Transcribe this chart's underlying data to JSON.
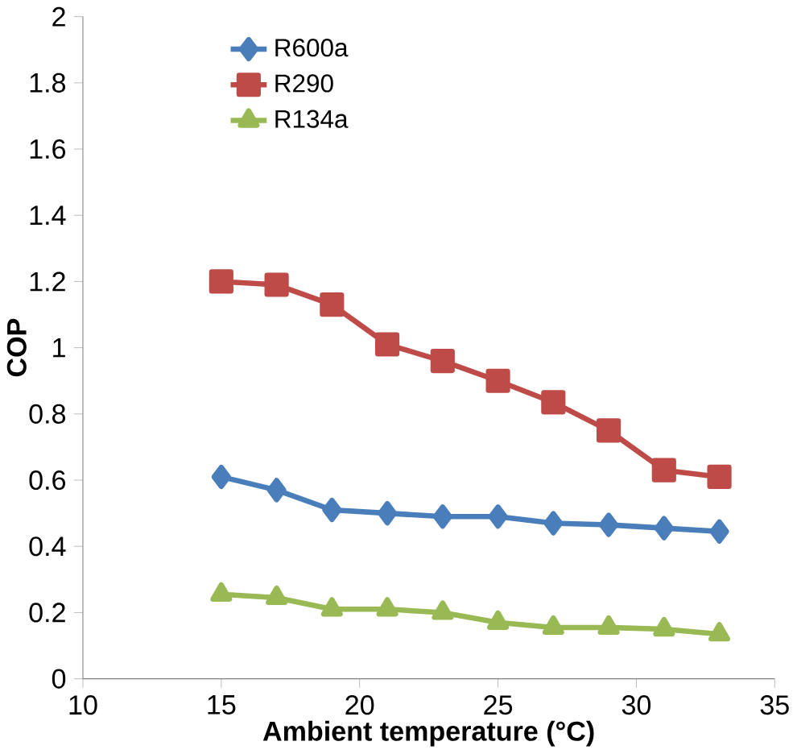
{
  "chart_data": {
    "type": "line",
    "xlabel": "Ambient temperature (°C)",
    "ylabel": "COP",
    "x": [
      15,
      17,
      19,
      21,
      23,
      25,
      27,
      29,
      31,
      33
    ],
    "series": [
      {
        "name": "R600a",
        "color": "#4a7ebb",
        "marker": "diamond",
        "values": [
          0.61,
          0.57,
          0.51,
          0.5,
          0.49,
          0.49,
          0.47,
          0.465,
          0.455,
          0.445
        ]
      },
      {
        "name": "R290",
        "color": "#be4b48",
        "marker": "square",
        "values": [
          1.2,
          1.19,
          1.13,
          1.01,
          0.96,
          0.9,
          0.835,
          0.75,
          0.63,
          0.61
        ]
      },
      {
        "name": "R134a",
        "color": "#98b954",
        "marker": "triangle",
        "values": [
          0.255,
          0.245,
          0.21,
          0.21,
          0.2,
          0.17,
          0.155,
          0.155,
          0.15,
          0.135
        ]
      }
    ],
    "xlim": [
      10,
      35
    ],
    "xticks": [
      10,
      15,
      20,
      25,
      30,
      35
    ],
    "ylim": [
      0,
      2
    ],
    "yticks": [
      0,
      0.2,
      0.4,
      0.6,
      0.8,
      1,
      1.2,
      1.4,
      1.6,
      1.8,
      2
    ],
    "grid": false,
    "legend": "top left",
    "line_style": "solid"
  }
}
